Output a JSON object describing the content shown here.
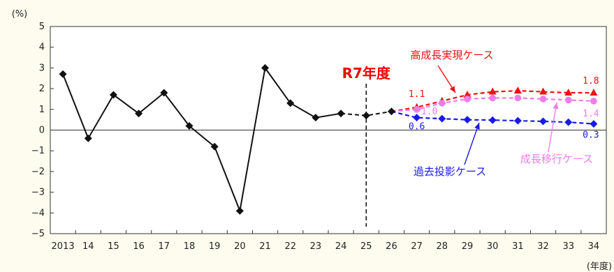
{
  "chart_data": {
    "type": "line",
    "y_unit": "(%)",
    "x_unit": "(年度)",
    "ylim": [
      -5,
      5
    ],
    "yticks": [
      5,
      4,
      3,
      2,
      1,
      0,
      -1,
      -2,
      -3,
      -4,
      -5
    ],
    "categories": [
      "2013",
      "14",
      "15",
      "16",
      "17",
      "18",
      "19",
      "20",
      "21",
      "22",
      "23",
      "24",
      "25",
      "26",
      "27",
      "28",
      "29",
      "30",
      "31",
      "32",
      "33",
      "34"
    ],
    "actual": {
      "color": "#111111",
      "values": [
        2.7,
        -0.4,
        1.7,
        0.8,
        1.8,
        0.2,
        -0.8,
        -3.9,
        3.0,
        1.3,
        0.6,
        0.8,
        null,
        null,
        null,
        null,
        null,
        null,
        null,
        null,
        null,
        null
      ]
    },
    "bridge": {
      "color": "#111111",
      "values": [
        null,
        null,
        null,
        null,
        null,
        null,
        null,
        null,
        null,
        null,
        null,
        0.8,
        0.7,
        0.9,
        null,
        null,
        null,
        null,
        null,
        null,
        null,
        null
      ]
    },
    "series": [
      {
        "name": "高成長実現ケース",
        "color": "#ee1111",
        "marker": "triangle",
        "values": [
          null,
          null,
          null,
          null,
          null,
          null,
          null,
          null,
          null,
          null,
          null,
          null,
          null,
          0.9,
          1.1,
          1.4,
          1.7,
          1.85,
          1.9,
          1.85,
          1.8,
          1.8
        ],
        "start_label": "1.1",
        "end_label": "1.8"
      },
      {
        "name": "成長移行ケース",
        "color": "#f07ce8",
        "marker": "circle",
        "values": [
          null,
          null,
          null,
          null,
          null,
          null,
          null,
          null,
          null,
          null,
          null,
          null,
          null,
          0.9,
          1.0,
          1.3,
          1.5,
          1.55,
          1.55,
          1.5,
          1.45,
          1.4
        ],
        "start_label": "1.0",
        "end_label": "1.4"
      },
      {
        "name": "過去投影ケース",
        "color": "#1a1ae6",
        "marker": "diamond",
        "values": [
          null,
          null,
          null,
          null,
          null,
          null,
          null,
          null,
          null,
          null,
          null,
          null,
          null,
          0.9,
          0.6,
          0.55,
          0.5,
          0.48,
          0.45,
          0.42,
          0.38,
          0.3
        ],
        "start_label": "0.6",
        "end_label": "0.3"
      }
    ],
    "vline": {
      "at": "25",
      "label": "R7年度",
      "label_color": "#ee0000"
    },
    "grid": false
  }
}
